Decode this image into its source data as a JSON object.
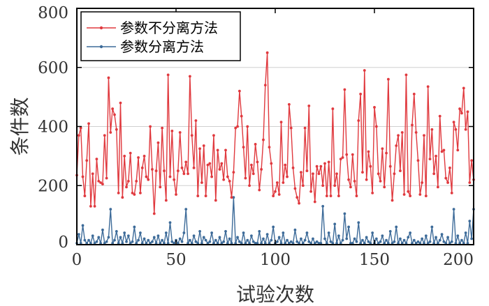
{
  "chart_data": {
    "type": "line",
    "xlabel": "试验次数",
    "ylabel": "条件数",
    "xlim": [
      0,
      200
    ],
    "ylim": [
      0,
      800
    ],
    "xticks": [
      0,
      50,
      100,
      150,
      200
    ],
    "yticks": [
      0,
      200,
      400,
      600,
      800
    ],
    "grid": "horizontal",
    "legend_position": "top-left",
    "series": [
      {
        "name": "参数不分离方法",
        "color": "#e0393e",
        "values": [
          235,
          370,
          395,
          230,
          165,
          285,
          410,
          130,
          240,
          130,
          290,
          215,
          210,
          205,
          370,
          225,
          565,
          380,
          460,
          440,
          390,
          175,
          480,
          160,
          300,
          195,
          215,
          310,
          175,
          170,
          215,
          295,
          175,
          260,
          300,
          230,
          220,
          400,
          255,
          105,
          250,
          345,
          195,
          395,
          250,
          150,
          575,
          230,
          385,
          220,
          170,
          250,
          380,
          260,
          240,
          280,
          240,
          570,
          370,
          260,
          420,
          165,
          325,
          210,
          335,
          165,
          270,
          275,
          230,
          370,
          150,
          320,
          255,
          275,
          220,
          320,
          230,
          215,
          160,
          245,
          395,
          400,
          520,
          435,
          330,
          225,
          400,
          200,
          270,
          240,
          340,
          280,
          185,
          255,
          355,
          540,
          650,
          330,
          275,
          165,
          180,
          210,
          170,
          415,
          210,
          270,
          230,
          475,
          395,
          260,
          190,
          160,
          140,
          245,
          200,
          395,
          250,
          470,
          180,
          240,
          145,
          265,
          240,
          265,
          200,
          275,
          165,
          280,
          165,
          460,
          200,
          240,
          165,
          290,
          295,
          525,
          305,
          220,
          195,
          305,
          215,
          165,
          420,
          510,
          245,
          590,
          220,
          315,
          265,
          175,
          465,
          400,
          240,
          215,
          325,
          195,
          310,
          560,
          265,
          150,
          240,
          335,
          370,
          250,
          380,
          170,
          575,
          180,
          165,
          405,
          510,
          380,
          285,
          170,
          210,
          370,
          165,
          535,
          290,
          390,
          240,
          300,
          195,
          435,
          315,
          320,
          225,
          210,
          260,
          175,
          415,
          390,
          320,
          460,
          445,
          530,
          390,
          450,
          210,
          285,
          220
        ]
      },
      {
        "name": "参数分离方法",
        "color": "#3d6b99",
        "values": [
          5,
          35,
          5,
          65,
          15,
          5,
          15,
          5,
          30,
          5,
          10,
          25,
          5,
          50,
          5,
          10,
          25,
          120,
          5,
          15,
          45,
          5,
          25,
          5,
          40,
          10,
          30,
          5,
          10,
          60,
          5,
          15,
          40,
          5,
          20,
          5,
          15,
          5,
          10,
          25,
          5,
          30,
          5,
          15,
          5,
          40,
          5,
          75,
          10,
          5,
          15,
          5,
          20,
          10,
          40,
          120,
          5,
          15,
          5,
          30,
          10,
          5,
          45,
          5,
          25,
          15,
          5,
          10,
          40,
          5,
          15,
          5,
          25,
          5,
          10,
          45,
          5,
          20,
          5,
          160,
          5,
          25,
          10,
          5,
          40,
          5,
          15,
          5,
          30,
          10,
          5,
          5,
          45,
          5,
          20,
          5,
          35,
          5,
          15,
          60,
          5,
          10,
          25,
          5,
          40,
          5,
          15,
          5,
          10,
          5,
          50,
          10,
          5,
          20,
          5,
          15,
          40,
          10,
          5,
          20,
          5,
          10,
          5,
          5,
          130,
          20,
          5,
          40,
          10,
          5,
          70,
          5,
          30,
          5,
          15,
          105,
          20,
          60,
          5,
          5,
          20,
          10,
          75,
          5,
          15,
          5,
          25,
          10,
          5,
          40,
          5,
          20,
          5,
          10,
          30,
          5,
          15,
          5,
          45,
          5,
          10,
          60,
          5,
          20,
          5,
          15,
          5,
          25,
          40,
          5,
          15,
          5,
          10,
          5,
          20,
          5,
          30,
          5,
          10,
          60,
          5,
          25,
          5,
          15,
          35,
          10,
          5,
          25,
          5,
          10,
          120,
          5,
          30,
          5,
          15,
          5,
          40,
          5,
          80,
          20,
          120
        ]
      }
    ]
  }
}
